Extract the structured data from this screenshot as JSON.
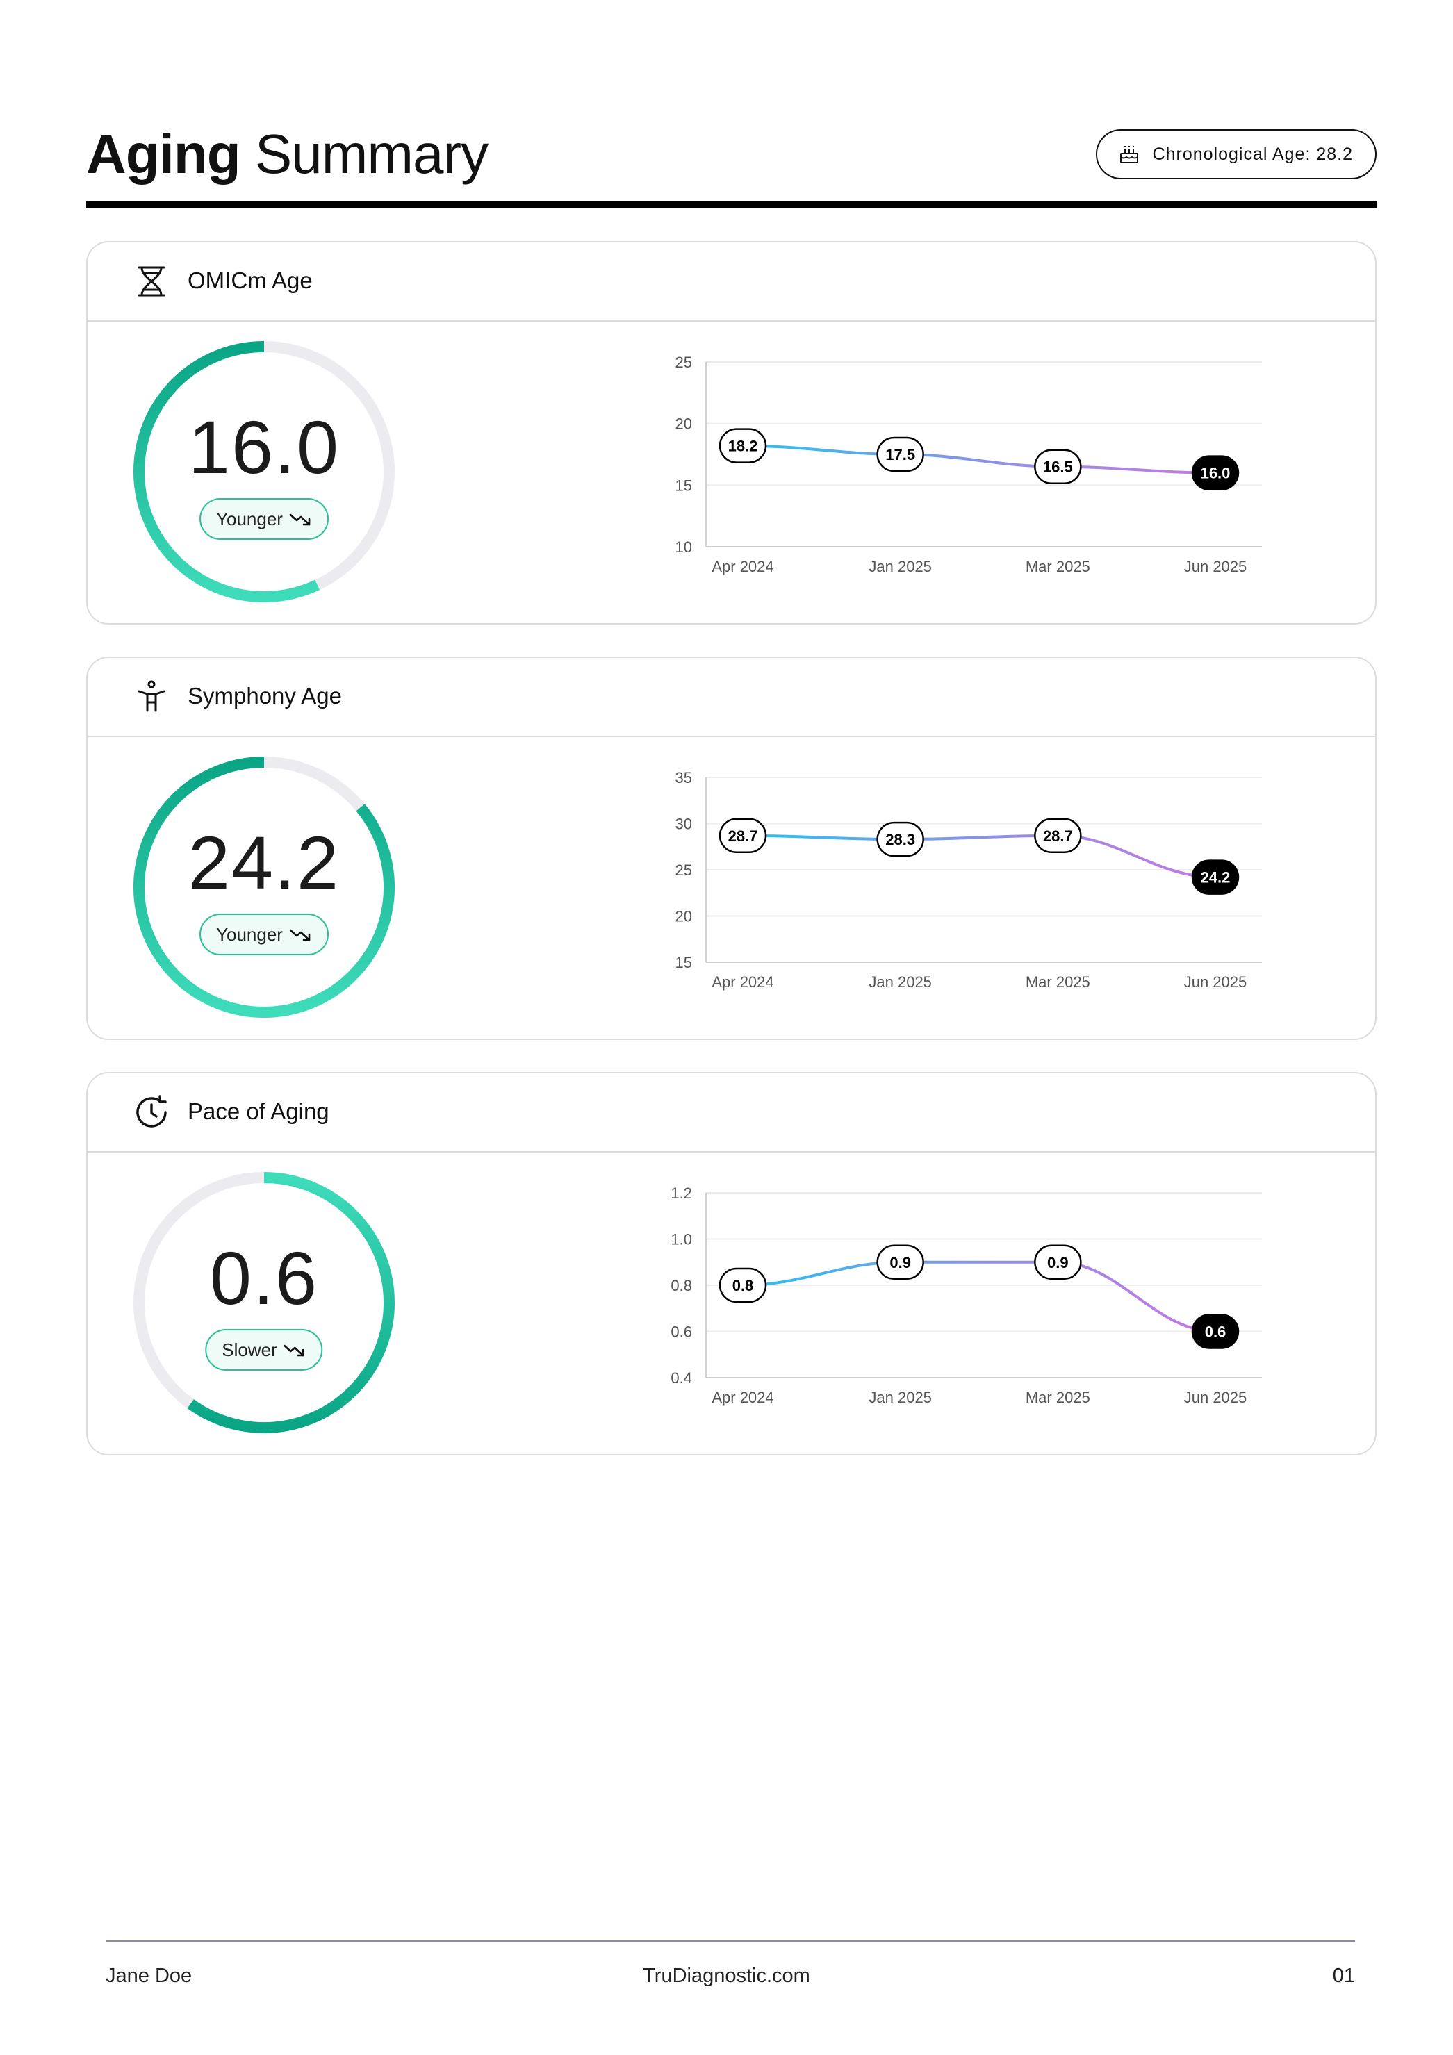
{
  "header": {
    "title_bold": "Aging",
    "title_light": "Summary",
    "chronological_label": "Chronological Age: 28.2",
    "chronological_icon": "birthday-cake-icon"
  },
  "colors": {
    "gauge_dark": "#0aa585",
    "gauge_light": "#3fdcbb",
    "track": "#ececf0",
    "line_start": "#27c3f2",
    "line_mid": "#8a92e6",
    "line_end": "#c679e2"
  },
  "cards": [
    {
      "title": "OMICm Age",
      "icon": "dna-icon",
      "value": "16.0",
      "status": "Younger",
      "status_icon": "trend-down-icon",
      "gauge_fraction": 0.57,
      "gauge_direction": "ccw"
    },
    {
      "title": "Symphony Age",
      "icon": "accessibility-person-icon",
      "value": "24.2",
      "status": "Younger",
      "status_icon": "trend-down-icon",
      "gauge_fraction": 0.86,
      "gauge_direction": "ccw"
    },
    {
      "title": "Pace of Aging",
      "icon": "clock-rotate-icon",
      "value": "0.6",
      "status": "Slower",
      "status_icon": "trend-down-icon",
      "gauge_fraction": 0.6,
      "gauge_direction": "cw"
    }
  ],
  "chart_data": [
    {
      "type": "line",
      "categories": [
        "Apr 2024",
        "Jan 2025",
        "Mar 2025",
        "Jun 2025"
      ],
      "values": [
        18.2,
        17.5,
        16.5,
        16.0
      ],
      "labels": [
        "18.2",
        "17.5",
        "16.5",
        "16.0"
      ],
      "ylim": [
        10,
        25
      ],
      "yticks": [
        "25",
        "20",
        "15",
        "10"
      ],
      "ytick_values": [
        25,
        20,
        15,
        10
      ],
      "grid": true,
      "highlight_last": true
    },
    {
      "type": "line",
      "categories": [
        "Apr 2024",
        "Jan 2025",
        "Mar 2025",
        "Jun 2025"
      ],
      "values": [
        28.7,
        28.3,
        28.7,
        24.2
      ],
      "labels": [
        "28.7",
        "28.3",
        "28.7",
        "24.2"
      ],
      "ylim": [
        15,
        35
      ],
      "yticks": [
        "35",
        "30",
        "25",
        "20",
        "15"
      ],
      "ytick_values": [
        35,
        30,
        25,
        20,
        15
      ],
      "grid": true,
      "highlight_last": true
    },
    {
      "type": "line",
      "categories": [
        "Apr 2024",
        "Jan 2025",
        "Mar 2025",
        "Jun 2025"
      ],
      "values": [
        0.8,
        0.9,
        0.9,
        0.6
      ],
      "labels": [
        "0.8",
        "0.9",
        "0.9",
        "0.6"
      ],
      "ylim": [
        0.4,
        1.2
      ],
      "yticks": [
        "1.2",
        "1.0",
        "0.8",
        "0.6",
        "0.4"
      ],
      "ytick_values": [
        1.2,
        1.0,
        0.8,
        0.6,
        0.4
      ],
      "grid": true,
      "highlight_last": true
    }
  ],
  "footer": {
    "name": "Jane Doe",
    "site": "TruDiagnostic.com",
    "page": "01"
  }
}
